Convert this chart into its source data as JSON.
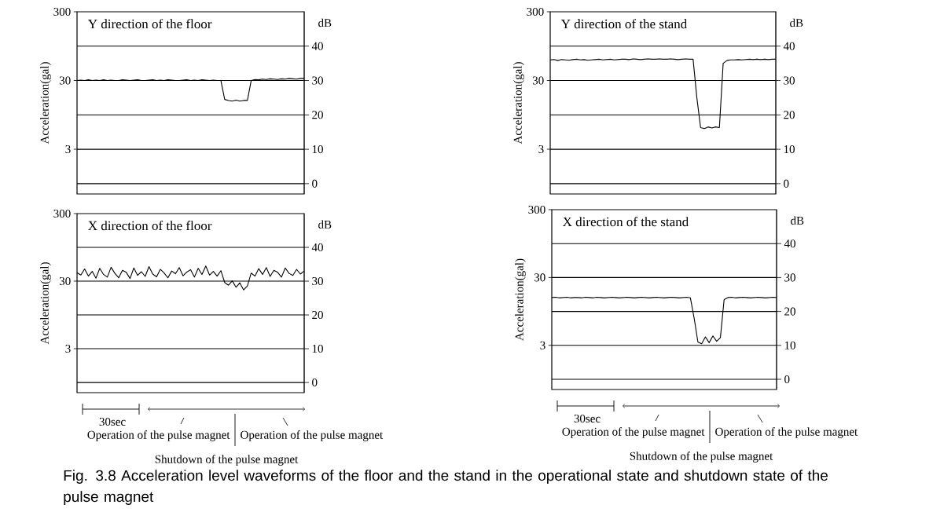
{
  "chart_data": [
    {
      "type": "line",
      "title": "Y direction of the floor",
      "ylabel": "Acceleration(gal)",
      "y2label": "dB",
      "log": "y",
      "grid": "y",
      "ylim": [
        0.67,
        300
      ],
      "yticks": [
        3,
        30,
        300
      ],
      "y2lim": [
        -3,
        50
      ],
      "y2ticks": [
        0,
        10,
        20,
        30,
        40
      ],
      "categories": [
        null,
        null,
        null,
        null,
        null,
        null,
        null,
        null,
        null,
        null,
        null,
        null,
        null,
        null,
        null,
        null,
        null,
        null,
        null,
        null,
        null,
        null,
        null,
        null,
        null,
        null,
        null,
        null,
        null,
        null,
        null,
        null,
        null,
        null,
        null,
        null,
        null,
        null,
        null,
        null,
        null,
        null,
        null,
        null,
        null,
        null,
        null,
        null,
        null,
        null,
        null,
        null,
        null,
        null,
        null,
        null,
        null,
        null,
        null,
        null,
        null
      ],
      "series": [
        {
          "color": "#000000",
          "axis": "y2",
          "values": [
            30,
            30.1,
            30,
            30.2,
            30,
            30.1,
            30,
            30.2,
            30,
            30.1,
            30,
            30,
            30.2,
            30.1,
            30,
            30.1,
            30.2,
            30,
            30,
            30.1,
            30.2,
            30,
            30.1,
            30,
            30.2,
            30.1,
            30,
            30,
            30.1,
            30.2,
            30,
            30.1,
            30,
            30.2,
            30.1,
            30,
            30.1,
            30,
            30,
            24.5,
            24.2,
            24,
            24.3,
            24,
            24.2,
            24.2,
            30,
            30.3,
            30.2,
            30.4,
            30.3,
            30.5,
            30.4,
            30.3,
            30.5,
            30.4,
            30.6,
            30.5,
            30.4,
            30.6,
            30.6
          ]
        }
      ]
    },
    {
      "type": "line",
      "title": "Y direction of the stand",
      "ylabel": "Acceleration(gal)",
      "y2label": "dB",
      "log": "y",
      "grid": "y",
      "ylim": [
        0.67,
        300
      ],
      "yticks": [
        3,
        30,
        300
      ],
      "y2lim": [
        -3,
        50
      ],
      "y2ticks": [
        0,
        10,
        20,
        30,
        40
      ],
      "categories": [
        null,
        null,
        null,
        null,
        null,
        null,
        null,
        null,
        null,
        null,
        null,
        null,
        null,
        null,
        null,
        null,
        null,
        null,
        null,
        null,
        null,
        null,
        null,
        null,
        null,
        null,
        null,
        null,
        null,
        null,
        null,
        null,
        null,
        null,
        null,
        null,
        null,
        null,
        null,
        null,
        null,
        null,
        null,
        null,
        null,
        null,
        null,
        null,
        null,
        null,
        null,
        null,
        null,
        null,
        null,
        null,
        null,
        null,
        null,
        null,
        null
      ],
      "series": [
        {
          "color": "#000000",
          "axis": "y2",
          "values": [
            36,
            36.1,
            35.8,
            36.1,
            36,
            35.9,
            36.1,
            36.2,
            36,
            36.1,
            35.9,
            36,
            36.1,
            36.2,
            36,
            36.1,
            36.2,
            36,
            36.1,
            36.2,
            36.2,
            36.1,
            36.3,
            36.2,
            36.1,
            36.2,
            36.3,
            36.2,
            36.2,
            36.3,
            36.2,
            36.2,
            36.3,
            36.2,
            36.1,
            36.2,
            36.3,
            36.2,
            36.2,
            25,
            16.3,
            16,
            16.5,
            16.2,
            16.5,
            16.3,
            35,
            35.8,
            36,
            36,
            36.1,
            36,
            36.1,
            36.2,
            36.1,
            36.2,
            36.1,
            36.2,
            36.1,
            36.2,
            36.2
          ]
        }
      ]
    },
    {
      "type": "line",
      "title": "X direction of the floor",
      "ylabel": "Acceleration(gal)",
      "y2label": "dB",
      "log": "y",
      "grid": "y",
      "ylim": [
        0.67,
        300
      ],
      "yticks": [
        3,
        30,
        300
      ],
      "y2lim": [
        -3,
        50
      ],
      "y2ticks": [
        0,
        10,
        20,
        30,
        40
      ],
      "categories": [
        null,
        null,
        null,
        null,
        null,
        null,
        null,
        null,
        null,
        null,
        null,
        null,
        null,
        null,
        null,
        null,
        null,
        null,
        null,
        null,
        null,
        null,
        null,
        null,
        null,
        null,
        null,
        null,
        null,
        null,
        null,
        null,
        null,
        null,
        null,
        null,
        null,
        null,
        null,
        null,
        null,
        null,
        null,
        null,
        null,
        null,
        null,
        null,
        null,
        null,
        null,
        null,
        null,
        null,
        null,
        null,
        null,
        null,
        null,
        null,
        null
      ],
      "annotations": [
        "30sec",
        "Operation of the pulse magnet",
        "Operation of the pulse magnet",
        "Shutdown of the pulse magnet"
      ],
      "series": [
        {
          "color": "#000000",
          "axis": "y2",
          "values": [
            32.5,
            31.8,
            33.6,
            31.5,
            32.9,
            30.9,
            33.8,
            32.0,
            31.2,
            34.1,
            32.3,
            31.0,
            33.2,
            32.6,
            30.8,
            33.9,
            31.7,
            32.8,
            31.4,
            34.3,
            32.1,
            31.3,
            33.5,
            32.4,
            31.0,
            33.0,
            32.2,
            34.0,
            31.6,
            32.7,
            33.4,
            31.2,
            33.8,
            32.0,
            34.5,
            31.8,
            32.9,
            31.5,
            33.1,
            29.6,
            28.8,
            30.1,
            28.2,
            29.5,
            27.4,
            28.6,
            32.4,
            31.5,
            33.7,
            32.0,
            34.0,
            31.4,
            33.2,
            32.6,
            31.2,
            33.9,
            32.3,
            31.7,
            33.5,
            32.1,
            33.0
          ]
        }
      ]
    },
    {
      "type": "line",
      "title": "X direction of the stand",
      "ylabel": "Acceleration(gal)",
      "y2label": "dB",
      "log": "y",
      "grid": "y",
      "ylim": [
        0.67,
        300
      ],
      "yticks": [
        3,
        30,
        300
      ],
      "y2lim": [
        -3,
        50
      ],
      "y2ticks": [
        0,
        10,
        20,
        30,
        40
      ],
      "categories": [
        null,
        null,
        null,
        null,
        null,
        null,
        null,
        null,
        null,
        null,
        null,
        null,
        null,
        null,
        null,
        null,
        null,
        null,
        null,
        null,
        null,
        null,
        null,
        null,
        null,
        null,
        null,
        null,
        null,
        null,
        null,
        null,
        null,
        null,
        null,
        null,
        null,
        null,
        null,
        null,
        null,
        null,
        null,
        null,
        null,
        null,
        null,
        null,
        null,
        null,
        null,
        null,
        null,
        null,
        null,
        null,
        null,
        null,
        null,
        null,
        null
      ],
      "annotations": [
        "30sec",
        "Operation of the pulse magnet",
        "Operation of the pulse magnet",
        "Shutdown of the pulse magnet",
        "Fig. 3.8 Acceleration level waveforms of the floor and the stand in the operational state and shutdown state of the pulse magnet"
      ],
      "series": [
        {
          "color": "#000000",
          "axis": "y2",
          "values": [
            24.1,
            24.2,
            24,
            24.1,
            24.2,
            24,
            24.1,
            24.1,
            24,
            24.2,
            24.1,
            24,
            24.2,
            24.1,
            24,
            24.1,
            24.2,
            24.1,
            24,
            24.1,
            24.2,
            24.1,
            24,
            24.1,
            24.2,
            24.1,
            24,
            24.1,
            24.2,
            24.1,
            24,
            24.1,
            24.2,
            24.1,
            24,
            24.1,
            24.2,
            24,
            18,
            11,
            10.5,
            12.5,
            10.8,
            12.8,
            11.2,
            12.3,
            23.5,
            24.1,
            24.2,
            24,
            24.1,
            24.2,
            24.1,
            24,
            24.1,
            24.2,
            24.1,
            24,
            24.1,
            24.2,
            24.1
          ]
        }
      ]
    }
  ]
}
